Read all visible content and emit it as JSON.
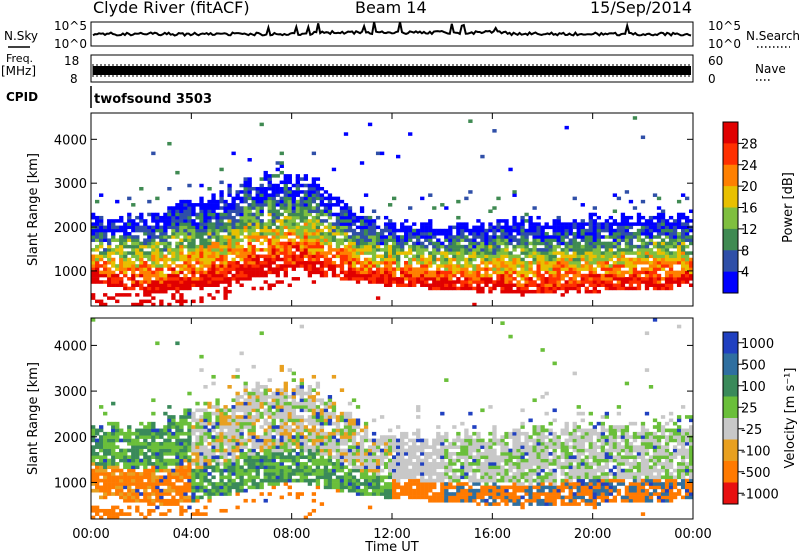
{
  "header": {
    "station": "Clyde River (fitACF)",
    "beam": "Beam 14",
    "date": "15/Sep/2014"
  },
  "side_labels": {
    "nsky": "N.Sky",
    "freq": "Freq.",
    "freq_unit": "[MHz]",
    "cpid": "CPID",
    "nsearch": "N.Search",
    "nave": "Nave",
    "cpid_value": "twofsound 3503"
  },
  "noise_axis_left": [
    "10^5",
    "10^0"
  ],
  "noise_axis_right": [
    "10^5",
    "10^0"
  ],
  "freq_axis_left": [
    "18",
    "8"
  ],
  "nave_axis_right": [
    "60",
    "0"
  ],
  "chart_data": [
    {
      "type": "heatmap",
      "title": "",
      "xlabel": "Time UT",
      "ylabel": "Slant Range [km]",
      "x_ticks": [
        "00:00",
        "04:00",
        "08:00",
        "12:00",
        "16:00",
        "20:00",
        "00:00"
      ],
      "y_ticks": [
        "1000",
        "2000",
        "3000",
        "4000"
      ],
      "xlim_hours": [
        0,
        24
      ],
      "ylim_km": [
        200,
        4600
      ],
      "colorbar": {
        "label": "Power [dB]",
        "ticks": [
          "4",
          "8",
          "12",
          "16",
          "20",
          "24",
          "28"
        ],
        "colors": [
          "#0000ff",
          "#2f4fa8",
          "#3f8a52",
          "#7fbf3f",
          "#e8c000",
          "#ff8000",
          "#ff3000",
          "#e00000"
        ]
      }
    },
    {
      "type": "heatmap",
      "title": "",
      "xlabel": "Time UT",
      "ylabel": "Slant Range [km]",
      "x_ticks": [
        "00:00",
        "04:00",
        "08:00",
        "12:00",
        "16:00",
        "20:00",
        "00:00"
      ],
      "y_ticks": [
        "1000",
        "2000",
        "3000",
        "4000"
      ],
      "xlim_hours": [
        0,
        24
      ],
      "ylim_km": [
        200,
        4600
      ],
      "colorbar": {
        "label": "Velocity [m s⁻¹]",
        "ticks": [
          "1000",
          "500",
          "100",
          "25",
          "-25",
          "-100",
          "-500",
          "-1000"
        ],
        "colors": [
          "#2040c0",
          "#2f6fa0",
          "#3a8a5a",
          "#6abf3a",
          "#c8c8c8",
          "#e8a020",
          "#ff7a00",
          "#e81010"
        ]
      }
    }
  ]
}
